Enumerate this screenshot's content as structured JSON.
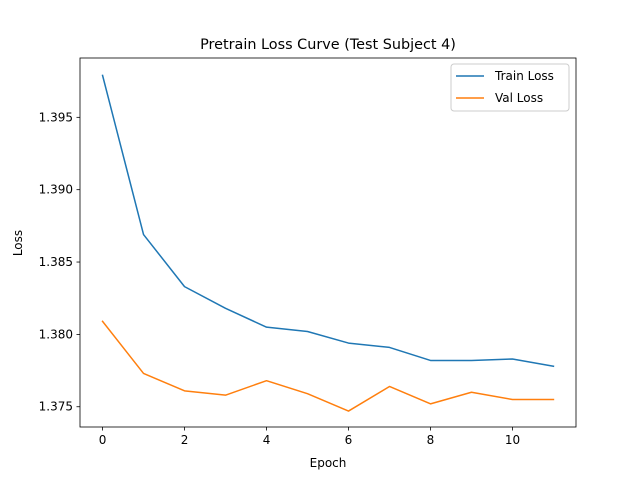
{
  "chart_data": {
    "type": "line",
    "title": "Pretrain Loss Curve (Test Subject 4)",
    "xlabel": "Epoch",
    "ylabel": "Loss",
    "xlim": [
      -0.55,
      11.55
    ],
    "ylim": [
      1.3736,
      1.3991
    ],
    "xticks": [
      0,
      2,
      4,
      6,
      8,
      10
    ],
    "yticks": [
      1.375,
      1.38,
      1.385,
      1.39,
      1.395
    ],
    "ytick_labels": [
      "1.375",
      "1.380",
      "1.385",
      "1.390",
      "1.395"
    ],
    "grid": false,
    "legend_position": "top-right",
    "x": [
      0,
      1,
      2,
      3,
      4,
      5,
      6,
      7,
      8,
      9,
      10,
      11
    ],
    "series": [
      {
        "name": "Train Loss",
        "color": "#1f77b4",
        "values": [
          1.3979,
          1.3869,
          1.3833,
          1.3818,
          1.3805,
          1.3802,
          1.3794,
          1.3791,
          1.3782,
          1.3782,
          1.3783,
          1.3778
        ]
      },
      {
        "name": "Val Loss",
        "color": "#ff7f0e",
        "values": [
          1.3809,
          1.3773,
          1.3761,
          1.3758,
          1.3768,
          1.3759,
          1.3747,
          1.3764,
          1.3752,
          1.376,
          1.3755,
          1.3755
        ]
      }
    ]
  }
}
